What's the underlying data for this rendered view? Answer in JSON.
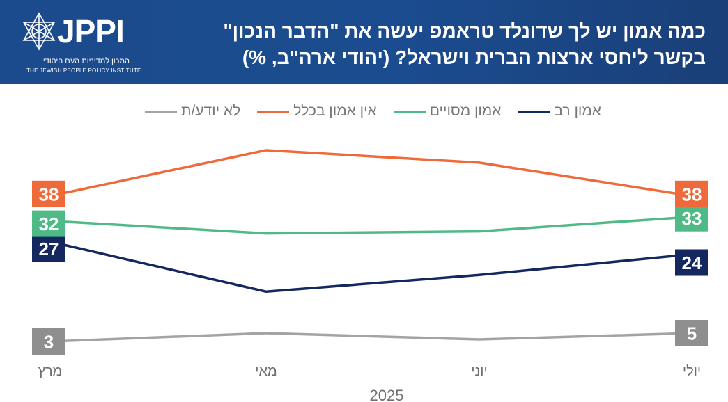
{
  "header": {
    "title": "כמה אמון יש לך שדונלד טראמפ יעשה את \"הדבר הנכון\" בקשר ליחסי ארצות הברית וישראל? (יהודי ארה\"ב, %)",
    "logo_word": "JPPI",
    "logo_hebrew": "המכון למדיניות העם היהודי",
    "logo_english": "THE JEWISH PEOPLE POLICY INSTITUTE",
    "logo_icon": "star-of-david-icon"
  },
  "colors": {
    "header_bg": "#1b4b8c",
    "navy": "#14275e",
    "green": "#4fba85",
    "orange": "#ef6a3a",
    "gray": "#a3a3a3"
  },
  "chart_data": {
    "type": "line",
    "title": "כמה אמון יש לך שדונלד טראמפ יעשה את \"הדבר הנכון\" בקשר ליחסי ארצות הברית וישראל? (יהודי ארה\"ב, %)",
    "categories": [
      "מרץ",
      "מאי",
      "יוני",
      "יולי"
    ],
    "xlabel": "2025",
    "ylabel": "",
    "ylim": [
      0,
      50
    ],
    "grid": false,
    "legend_position": "top",
    "series": [
      {
        "name": "אמון רב",
        "color": "#14275e",
        "values": [
          27,
          15,
          19,
          24
        ],
        "labels": [
          "27",
          "",
          "",
          "24"
        ]
      },
      {
        "name": "אמון מסויים",
        "color": "#4fba85",
        "values": [
          32,
          29,
          29.5,
          33
        ],
        "labels": [
          "32",
          "",
          "",
          "33"
        ]
      },
      {
        "name": "אין אמון בכלל",
        "color": "#ef6a3a",
        "values": [
          38,
          49,
          46,
          38
        ],
        "labels": [
          "38",
          "",
          "",
          "38"
        ]
      },
      {
        "name": "לא יודע/ת",
        "color": "#a3a3a3",
        "values": [
          3,
          5,
          3.5,
          5
        ],
        "labels": [
          "3",
          "",
          "",
          "5"
        ]
      }
    ]
  }
}
